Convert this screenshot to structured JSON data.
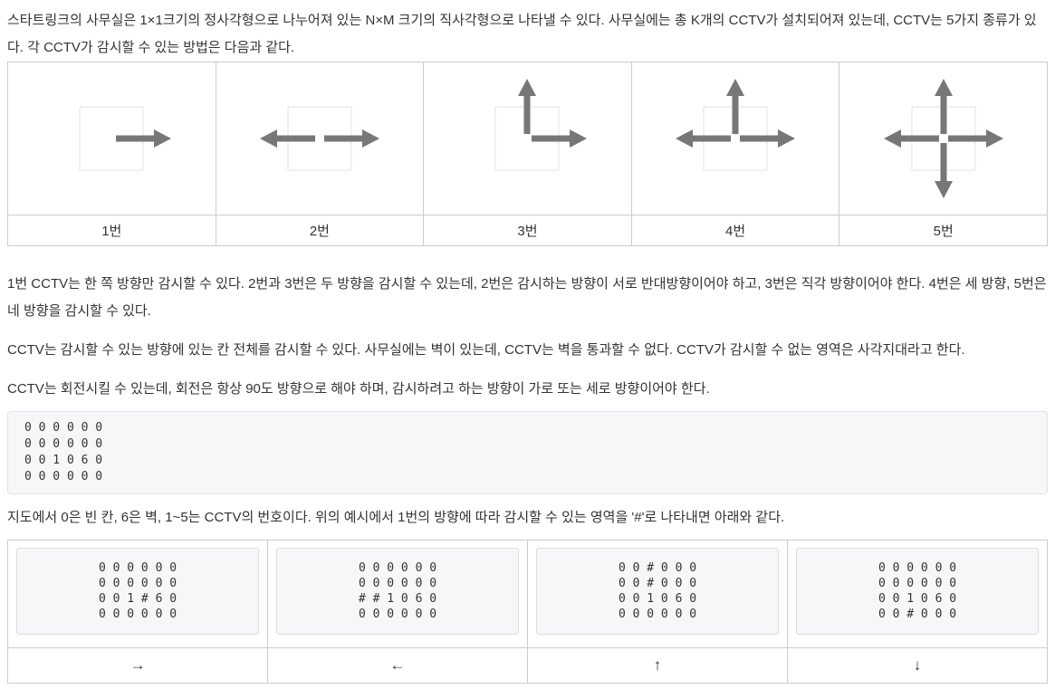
{
  "paragraphs": {
    "p1": "스타트링크의 사무실은 1×1크기의 정사각형으로 나누어져 있는 N×M 크기의 직사각형으로 나타낼 수 있다. 사무실에는 총 K개의 CCTV가 설치되어져 있는데, CCTV는 5가지 종류가 있다. 각 CCTV가 감시할 수 있는 방법은 다음과 같다.",
    "p2": "1번 CCTV는 한 쪽 방향만 감시할 수 있다. 2번과 3번은 두 방향을 감시할 수 있는데, 2번은 감시하는 방향이 서로 반대방향이어야 하고, 3번은 직각 방향이어야 한다. 4번은 세 방향, 5번은 네 방향을 감시할 수 있다.",
    "p3": "CCTV는 감시할 수 있는 방향에 있는 칸 전체를 감시할 수 있다. 사무실에는 벽이 있는데, CCTV는 벽을 통과할 수 없다. CCTV가 감시할 수 없는 영역은 사각지대라고 한다.",
    "p4": "CCTV는 회전시킬 수 있는데, 회전은 항상 90도 방향으로 해야 하며, 감시하려고 하는 방향이 가로 또는 세로 방향이어야 한다.",
    "p5": "지도에서 0은 빈 칸, 6은 벽, 1~5는 CCTV의 번호이다. 위의 예시에서 1번의 방향에 따라 감시할 수 있는 영역을 '#'로 나타내면 아래와 같다."
  },
  "cctv_table": {
    "cells": [
      {
        "label": "1번",
        "directions": [
          "right"
        ]
      },
      {
        "label": "2번",
        "directions": [
          "left",
          "right"
        ]
      },
      {
        "label": "3번",
        "directions": [
          "up",
          "right"
        ]
      },
      {
        "label": "4번",
        "directions": [
          "left",
          "up",
          "right"
        ]
      },
      {
        "label": "5번",
        "directions": [
          "left",
          "right",
          "up",
          "down"
        ]
      }
    ]
  },
  "map_block": {
    "lines": [
      "0 0 0 0 0 0",
      "0 0 0 0 0 0",
      "0 0 1 0 6 0",
      "0 0 0 0 0 0"
    ]
  },
  "direction_table": {
    "cells": [
      {
        "label": "→",
        "lines": [
          "0 0 0 0 0 0",
          "0 0 0 0 0 0",
          "0 0 1 # 6 0",
          "0 0 0 0 0 0"
        ]
      },
      {
        "label": "←",
        "lines": [
          "0 0 0 0 0 0",
          "0 0 0 0 0 0",
          "# # 1 0 6 0",
          "0 0 0 0 0 0"
        ]
      },
      {
        "label": "↑",
        "lines": [
          "0 0 # 0 0 0",
          "0 0 # 0 0 0",
          "0 0 1 0 6 0",
          "0 0 0 0 0 0"
        ]
      },
      {
        "label": "↓",
        "lines": [
          "0 0 0 0 0 0",
          "0 0 0 0 0 0",
          "0 0 1 0 6 0",
          "0 0 # 0 0 0"
        ]
      }
    ]
  },
  "colors": {
    "arrow": "#777777",
    "square_border": "#e3e3e3",
    "square_fill": "#ffffff",
    "table_border": "#cccccc",
    "code_bg": "#f7f7f9",
    "code_border": "#e1e1e8",
    "text": "#333333"
  }
}
